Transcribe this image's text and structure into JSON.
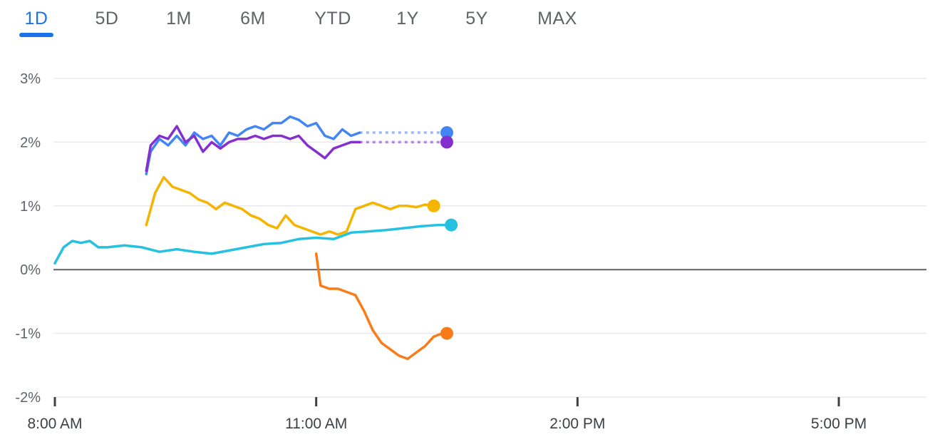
{
  "tabs": [
    {
      "label": "1D",
      "active": true
    },
    {
      "label": "5D",
      "active": false
    },
    {
      "label": "1M",
      "active": false
    },
    {
      "label": "6M",
      "active": false
    },
    {
      "label": "YTD",
      "active": false
    },
    {
      "label": "1Y",
      "active": false
    },
    {
      "label": "5Y",
      "active": false
    },
    {
      "label": "MAX",
      "active": false
    }
  ],
  "colors": {
    "accent": "#1a73e8",
    "grid": "#e8eaed",
    "zero_line": "#5f6368"
  },
  "chart_data": {
    "type": "line",
    "title": "",
    "xlabel": "",
    "ylabel": "",
    "ylim": [
      -2,
      3
    ],
    "y_ticks": [
      3,
      2,
      1,
      0,
      -1,
      -2
    ],
    "y_tick_labels": [
      "3%",
      "2%",
      "1%",
      "0%",
      "-1%",
      "-2%"
    ],
    "x_ticks": [
      8,
      11,
      14,
      17
    ],
    "x_tick_labels": [
      "8:00 AM",
      "11:00 AM",
      "2:00 PM",
      "5:00 PM"
    ],
    "xlim": [
      8,
      18
    ],
    "grid": true,
    "series": [
      {
        "color": "#4285f4",
        "x": [
          9.05,
          9.1,
          9.2,
          9.3,
          9.4,
          9.5,
          9.6,
          9.7,
          9.8,
          9.9,
          10.0,
          10.1,
          10.2,
          10.3,
          10.4,
          10.5,
          10.6,
          10.7,
          10.8,
          10.9,
          11.0,
          11.1,
          11.2,
          11.3,
          11.4,
          11.5
        ],
        "y": [
          1.5,
          1.85,
          2.05,
          1.95,
          2.1,
          1.95,
          2.15,
          2.05,
          2.1,
          1.95,
          2.15,
          2.1,
          2.2,
          2.25,
          2.2,
          2.3,
          2.3,
          2.4,
          2.35,
          2.25,
          2.3,
          2.1,
          2.05,
          2.2,
          2.1,
          2.15
        ],
        "end_x": 12.5,
        "end_y": 2.15
      },
      {
        "color": "#8430ce",
        "x": [
          9.05,
          9.1,
          9.2,
          9.3,
          9.4,
          9.5,
          9.6,
          9.7,
          9.8,
          9.9,
          10.0,
          10.1,
          10.2,
          10.3,
          10.4,
          10.5,
          10.6,
          10.7,
          10.8,
          10.9,
          11.0,
          11.1,
          11.2,
          11.3,
          11.4,
          11.5
        ],
        "y": [
          1.55,
          1.95,
          2.1,
          2.05,
          2.25,
          2.0,
          2.1,
          1.85,
          2.0,
          1.9,
          2.0,
          2.05,
          2.05,
          2.1,
          2.05,
          2.1,
          2.1,
          2.05,
          2.1,
          1.95,
          1.85,
          1.75,
          1.9,
          1.95,
          2.0,
          2.0
        ],
        "end_x": 12.5,
        "end_y": 2.0
      },
      {
        "color": "#f4b400",
        "x": [
          9.05,
          9.15,
          9.25,
          9.35,
          9.45,
          9.55,
          9.65,
          9.75,
          9.85,
          9.95,
          10.05,
          10.15,
          10.25,
          10.35,
          10.45,
          10.55,
          10.65,
          10.75,
          10.85,
          10.95,
          11.05,
          11.15,
          11.25,
          11.35,
          11.45,
          11.55,
          11.65,
          11.75,
          11.85,
          11.95,
          12.05,
          12.15,
          12.25,
          12.35
        ],
        "y": [
          0.7,
          1.2,
          1.45,
          1.3,
          1.25,
          1.2,
          1.1,
          1.05,
          0.95,
          1.05,
          1.0,
          0.95,
          0.85,
          0.8,
          0.7,
          0.65,
          0.85,
          0.7,
          0.65,
          0.6,
          0.55,
          0.6,
          0.55,
          0.6,
          0.95,
          1.0,
          1.05,
          1.0,
          0.95,
          1.0,
          1.0,
          0.98,
          1.02,
          1.0
        ],
        "end_x": 12.35,
        "end_y": 1.0
      },
      {
        "color": "#24c1e0",
        "x": [
          8.0,
          8.1,
          8.2,
          8.3,
          8.4,
          8.5,
          8.6,
          8.8,
          9.0,
          9.2,
          9.4,
          9.6,
          9.8,
          10.0,
          10.2,
          10.4,
          10.6,
          10.8,
          11.0,
          11.2,
          11.4,
          11.6,
          11.8,
          12.0,
          12.2,
          12.4,
          12.55
        ],
        "y": [
          0.1,
          0.35,
          0.45,
          0.42,
          0.45,
          0.35,
          0.35,
          0.38,
          0.35,
          0.28,
          0.32,
          0.28,
          0.25,
          0.3,
          0.35,
          0.4,
          0.42,
          0.48,
          0.5,
          0.48,
          0.58,
          0.6,
          0.62,
          0.65,
          0.68,
          0.7,
          0.7
        ],
        "end_x": 12.55,
        "end_y": 0.7
      },
      {
        "color": "#fa7b17",
        "x": [
          11.0,
          11.05,
          11.15,
          11.25,
          11.35,
          11.45,
          11.55,
          11.65,
          11.75,
          11.85,
          11.95,
          12.05,
          12.15,
          12.25,
          12.35,
          12.45
        ],
        "y": [
          0.25,
          -0.25,
          -0.3,
          -0.3,
          -0.35,
          -0.4,
          -0.65,
          -0.95,
          -1.15,
          -1.25,
          -1.35,
          -1.4,
          -1.3,
          -1.2,
          -1.05,
          -1.0
        ],
        "end_x": 12.5,
        "end_y": -1.0
      }
    ]
  }
}
